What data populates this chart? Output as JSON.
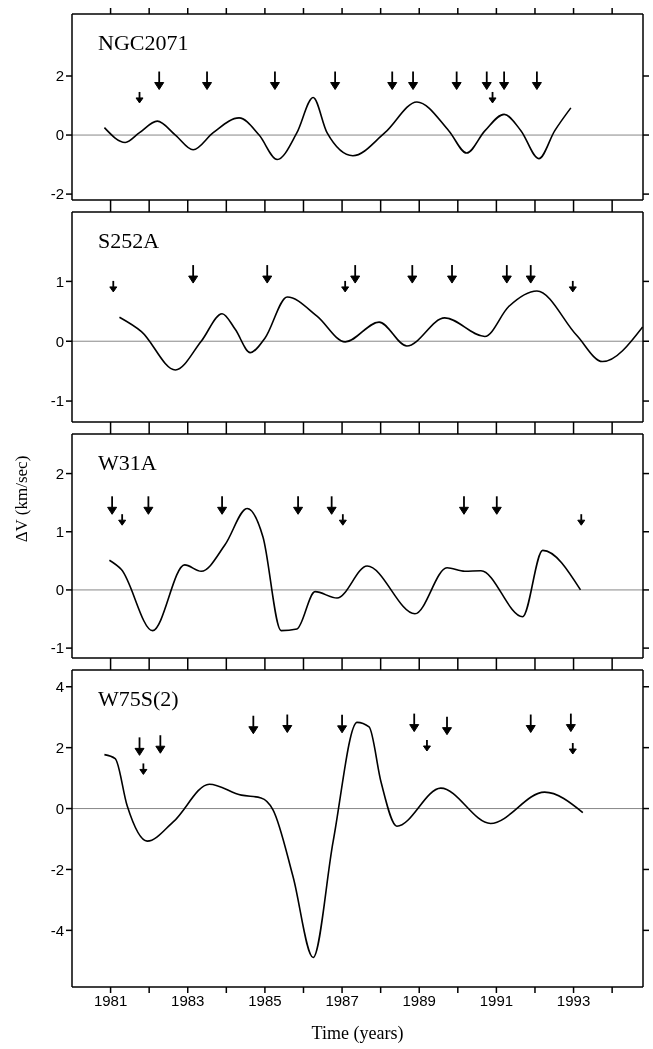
{
  "chart_data": [
    {
      "type": "line",
      "title": "NGC2071",
      "x": [
        1980.84,
        1981.38,
        1981.75,
        1982.21,
        1982.68,
        1983.14,
        1983.66,
        1984.33,
        1984.85,
        1985.32,
        1985.83,
        1986.25,
        1986.61,
        1987.28,
        1988.11,
        1988.94,
        1989.77,
        1990.23,
        1990.7,
        1991.2,
        1991.64,
        1992.1,
        1992.51,
        1992.93
      ],
      "series": [
        {
          "color": "#000000",
          "values": [
            0.25,
            -0.25,
            0.08,
            0.47,
            0.0,
            -0.5,
            0.08,
            0.58,
            0.0,
            -0.83,
            0.08,
            1.27,
            0.08,
            -0.7,
            0.08,
            1.12,
            0.14,
            -0.61,
            0.14,
            0.7,
            0.14,
            -0.8,
            0.14,
            0.92
          ]
        },
        {
          "type": "scatter",
          "marker": "triangle",
          "color": "#000000",
          "x": [
            1982.26,
            1983.5,
            1985.26,
            1986.82,
            1988.3,
            1988.84,
            1989.97,
            1990.75,
            1991.2,
            1992.05
          ],
          "values": [
            1.7,
            1.7,
            1.7,
            1.7,
            1.7,
            1.7,
            1.7,
            1.7,
            1.7,
            1.7
          ]
        },
        {
          "type": "scatter",
          "marker": "triangle",
          "color": "#000000",
          "x": [
            1981.75,
            1990.9
          ],
          "values": [
            1.2,
            1.2
          ]
        }
      ],
      "xlim": [
        1980,
        1994.8
      ],
      "xticks": [
        1981,
        {
          "value": 1982,
          "label": null
        },
        1983,
        {
          "value": 1984,
          "label": null
        },
        1985,
        {
          "value": 1986,
          "label": null
        },
        1987,
        {
          "value": 1988,
          "label": null
        },
        1989,
        {
          "value": 1990,
          "label": null
        },
        1991,
        {
          "value": 1992,
          "label": null
        },
        1993,
        {
          "value": 1994,
          "label": null
        }
      ],
      "ylim": [
        -2.2,
        4.1
      ],
      "yticks": [
        -2,
        0,
        2
      ],
      "tick_labels": "y",
      "ref_lines": [
        {
          "axis": "y",
          "value": 0,
          "color": "#888888"
        }
      ]
    },
    {
      "type": "line",
      "title": "S252A",
      "ylabel": "ΔV (km/sec)",
      "x": [
        1981.23,
        1981.8,
        1982.68,
        1983.35,
        1983.89,
        1984.23,
        1984.62,
        1985.0,
        1985.58,
        1986.35,
        1987.08,
        1987.96,
        1988.68,
        1989.66,
        1990.7,
        1991.32,
        1992.05,
        1993.08,
        1993.75,
        1994.79
      ],
      "series": [
        {
          "color": "#000000",
          "values": [
            0.4,
            0.16,
            -0.48,
            0.0,
            0.46,
            0.2,
            -0.19,
            0.05,
            0.74,
            0.42,
            -0.01,
            0.32,
            -0.08,
            0.39,
            0.08,
            0.58,
            0.84,
            0.1,
            -0.34,
            0.24
          ]
        },
        {
          "type": "scatter",
          "marker": "triangle",
          "color": "#000000",
          "x": [
            1983.14,
            1985.06,
            1987.34,
            1988.82,
            1989.85,
            1991.27,
            1991.89
          ],
          "values": [
            1.05,
            1.05,
            1.05,
            1.05,
            1.05,
            1.05,
            1.05
          ]
        },
        {
          "type": "scatter",
          "marker": "triangle",
          "color": "#000000",
          "x": [
            1981.07,
            1987.08,
            1992.98
          ],
          "values": [
            0.88,
            0.88,
            0.88
          ]
        }
      ],
      "xlim": [
        1980,
        1994.8
      ],
      "xticks": [
        1981,
        {
          "value": 1982,
          "label": null
        },
        1983,
        {
          "value": 1984,
          "label": null
        },
        1985,
        {
          "value": 1986,
          "label": null
        },
        1987,
        {
          "value": 1988,
          "label": null
        },
        1989,
        {
          "value": 1990,
          "label": null
        },
        1991,
        {
          "value": 1992,
          "label": null
        },
        1993,
        {
          "value": 1994,
          "label": null
        }
      ],
      "ylim": [
        -1.35,
        2.16
      ],
      "yticks": [
        -1,
        0,
        1
      ],
      "tick_labels": "y",
      "ref_lines": [
        {
          "axis": "y",
          "value": 0,
          "color": "#888888"
        }
      ]
    },
    {
      "type": "line",
      "title": "W31A",
      "x": [
        1980.97,
        1981.28,
        1982.09,
        1982.92,
        1983.35,
        1983.97,
        1984.54,
        1984.95,
        1985.42,
        1985.83,
        1986.3,
        1986.87,
        1987.65,
        1988.89,
        1989.72,
        1990.18,
        1990.6,
        1991.68,
        1992.2,
        1993.18
      ],
      "series": [
        {
          "color": "#000000",
          "values": [
            0.51,
            0.35,
            -0.7,
            0.43,
            0.32,
            0.78,
            1.4,
            0.91,
            -0.7,
            -0.67,
            -0.03,
            -0.14,
            0.41,
            -0.41,
            0.38,
            0.32,
            0.33,
            -0.46,
            0.68,
            0.0
          ]
        },
        {
          "type": "scatter",
          "marker": "triangle",
          "color": "#000000",
          "x": [
            1981.04,
            1981.98,
            1983.89,
            1985.86,
            1986.73,
            1990.16,
            1991.01
          ],
          "values": [
            1.38,
            1.38,
            1.38,
            1.38,
            1.38,
            1.38,
            1.38
          ]
        },
        {
          "type": "scatter",
          "marker": "triangle",
          "color": "#000000",
          "x": [
            1981.3,
            1987.02,
            1993.2
          ],
          "values": [
            1.17,
            1.17,
            1.17
          ]
        }
      ],
      "xlim": [
        1980,
        1994.8
      ],
      "xticks": [
        1981,
        {
          "value": 1982,
          "label": null
        },
        1983,
        {
          "value": 1984,
          "label": null
        },
        1985,
        {
          "value": 1986,
          "label": null
        },
        1987,
        {
          "value": 1988,
          "label": null
        },
        1989,
        {
          "value": 1990,
          "label": null
        },
        1991,
        {
          "value": 1992,
          "label": null
        },
        1993,
        {
          "value": 1994,
          "label": null
        }
      ],
      "ylim": [
        -1.17,
        2.68
      ],
      "yticks": [
        -1,
        0,
        1,
        2
      ],
      "tick_labels": "y",
      "ref_lines": [
        {
          "axis": "y",
          "value": 0,
          "color": "#888888"
        }
      ]
    },
    {
      "type": "line",
      "title": "W75S(2)",
      "xlabel": "Time (years)",
      "x": [
        1980.84,
        1981.12,
        1981.43,
        1981.95,
        1982.63,
        1983.56,
        1984.39,
        1984.9,
        1985.21,
        1985.73,
        1986.25,
        1986.77,
        1987.39,
        1987.7,
        1988.01,
        1988.42,
        1989.56,
        1990.85,
        1992.25,
        1993.24
      ],
      "series": [
        {
          "color": "#000000",
          "values": [
            1.77,
            1.64,
            0.09,
            -1.07,
            -0.43,
            0.8,
            0.44,
            0.35,
            -0.04,
            -2.24,
            -4.89,
            -1.07,
            2.83,
            2.68,
            0.87,
            -0.58,
            0.67,
            -0.49,
            0.54,
            -0.13
          ]
        },
        {
          "type": "scatter",
          "marker": "triangle",
          "color": "#000000",
          "x": [
            1981.75,
            1982.29,
            1984.7,
            1985.58,
            1987.0,
            1988.87,
            1989.72,
            1991.89,
            1992.93
          ],
          "values": [
            1.9,
            1.97,
            2.61,
            2.65,
            2.64,
            2.68,
            2.58,
            2.65,
            2.68
          ]
        },
        {
          "type": "scatter",
          "marker": "triangle",
          "color": "#000000",
          "x": [
            1981.85,
            1989.2,
            1992.98
          ],
          "values": [
            1.23,
            2.0,
            1.9
          ]
        }
      ],
      "xlim": [
        1980,
        1994.8
      ],
      "xticks": [
        1981,
        {
          "value": 1982,
          "label": null
        },
        1983,
        {
          "value": 1984,
          "label": null
        },
        1985,
        {
          "value": 1986,
          "label": null
        },
        1987,
        {
          "value": 1988,
          "label": null
        },
        1989,
        {
          "value": 1990,
          "label": null
        },
        1991,
        {
          "value": 1992,
          "label": null
        },
        1993,
        {
          "value": 1994,
          "label": null
        }
      ],
      "ylim": [
        -5.86,
        4.55
      ],
      "yticks": [
        -4,
        -2,
        0,
        2,
        4
      ],
      "ref_lines": [
        {
          "axis": "y",
          "value": 0,
          "color": "#888888"
        }
      ]
    }
  ]
}
